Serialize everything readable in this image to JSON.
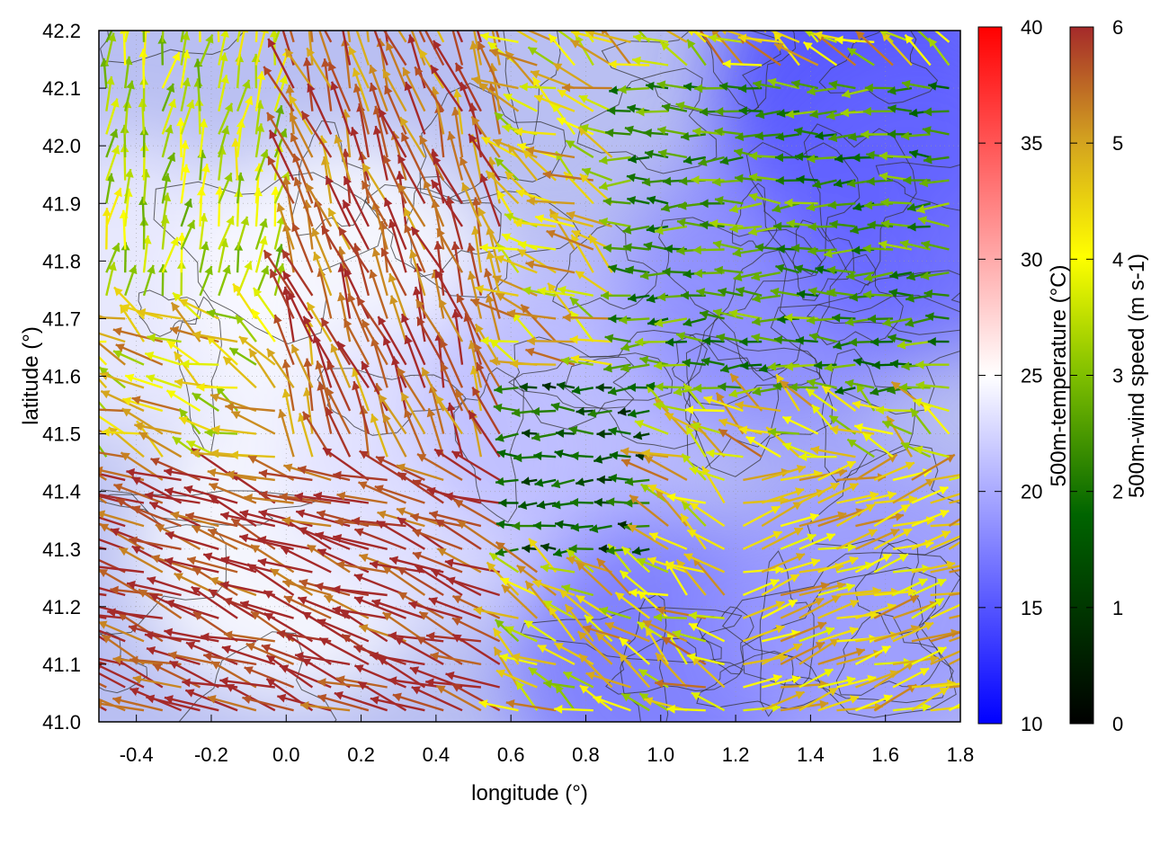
{
  "chart_data": {
    "type": "heatmap",
    "title": "",
    "xlabel": "longitude (°)",
    "ylabel": "latitude (°)",
    "xlim": [
      -0.5,
      1.8
    ],
    "ylim": [
      41.0,
      42.2
    ],
    "x_ticks": [
      "-0.4",
      "-0.2",
      "0.0",
      "0.2",
      "0.4",
      "0.6",
      "0.8",
      "1.0",
      "1.2",
      "1.4",
      "1.6",
      "1.8"
    ],
    "x_tick_values": [
      -0.4,
      -0.2,
      0.0,
      0.2,
      0.4,
      0.6,
      0.8,
      1.0,
      1.2,
      1.4,
      1.6,
      1.8
    ],
    "y_ticks": [
      "41.0",
      "41.1",
      "41.2",
      "41.3",
      "41.4",
      "41.5",
      "41.6",
      "41.7",
      "41.8",
      "41.9",
      "42.0",
      "42.1",
      "42.2"
    ],
    "y_tick_values": [
      41.0,
      41.1,
      41.2,
      41.3,
      41.4,
      41.5,
      41.6,
      41.7,
      41.8,
      41.9,
      42.0,
      42.1,
      42.2
    ],
    "grid": true,
    "background_field": {
      "name": "500m-temperature",
      "colorbar_label": "500m-temperature (°C)",
      "range": [
        10,
        40
      ],
      "ticks": [
        "10",
        "15",
        "20",
        "25",
        "30",
        "35",
        "40"
      ],
      "tick_values": [
        10,
        15,
        20,
        25,
        30,
        35,
        40
      ],
      "colors": [
        "#0000ff",
        "#ffffff",
        "#ff0000"
      ],
      "regions": [
        {
          "lon": -0.45,
          "lat": 41.75,
          "temp": 24
        },
        {
          "lon": 0.15,
          "lat": 41.75,
          "temp": 25
        },
        {
          "lon": 0.0,
          "lat": 41.3,
          "temp": 25
        },
        {
          "lon": 0.4,
          "lat": 41.45,
          "temp": 23
        },
        {
          "lon": 0.75,
          "lat": 41.55,
          "temp": 21
        },
        {
          "lon": 1.0,
          "lat": 41.1,
          "temp": 17
        },
        {
          "lon": 1.3,
          "lat": 41.75,
          "temp": 18
        },
        {
          "lon": 1.55,
          "lat": 42.1,
          "temp": 14
        },
        {
          "lon": 1.7,
          "lat": 41.9,
          "temp": 16
        },
        {
          "lon": 1.55,
          "lat": 41.2,
          "temp": 19
        }
      ]
    },
    "vector_field": {
      "name": "500m-wind speed",
      "colorbar_label": "500m-wind speed (m s-1)",
      "range": [
        0,
        6
      ],
      "ticks": [
        "0",
        "1",
        "2",
        "3",
        "4",
        "5",
        "6"
      ],
      "tick_values": [
        0,
        1,
        2,
        3,
        4,
        5,
        6
      ],
      "colors": [
        "#000000",
        "#006400",
        "#7fbf00",
        "#ffff00",
        "#d2a020",
        "#a52a2a"
      ],
      "regimes": [
        {
          "region": "southwest",
          "lon_range": [
            -0.5,
            0.6
          ],
          "lat_range": [
            41.0,
            41.45
          ],
          "direction": "from ESE toward WNW",
          "speed": 6
        },
        {
          "region": "central-west",
          "lon_range": [
            0.0,
            0.6
          ],
          "lat_range": [
            41.45,
            42.2
          ],
          "direction": "from SSE toward NNW",
          "speed": 5.5
        },
        {
          "region": "east",
          "lon_range": [
            0.9,
            1.8
          ],
          "lat_range": [
            41.55,
            42.1
          ],
          "direction": "from E toward W",
          "speed": 2.5
        },
        {
          "region": "southeast",
          "lon_range": [
            1.2,
            1.8
          ],
          "lat_range": [
            41.0,
            41.45
          ],
          "direction": "from WSW toward ENE",
          "speed": 4.5
        },
        {
          "region": "center",
          "lon_range": [
            0.5,
            1.0
          ],
          "lat_range": [
            41.3,
            41.6
          ],
          "direction": "from E toward W",
          "speed": 1.5
        },
        {
          "region": "northwest",
          "lon_range": [
            -0.5,
            0.0
          ],
          "lat_range": [
            41.7,
            42.2
          ],
          "direction": "variable",
          "speed": 3.5
        }
      ]
    },
    "contours": {
      "color": "#333333",
      "description_shown": false
    }
  }
}
